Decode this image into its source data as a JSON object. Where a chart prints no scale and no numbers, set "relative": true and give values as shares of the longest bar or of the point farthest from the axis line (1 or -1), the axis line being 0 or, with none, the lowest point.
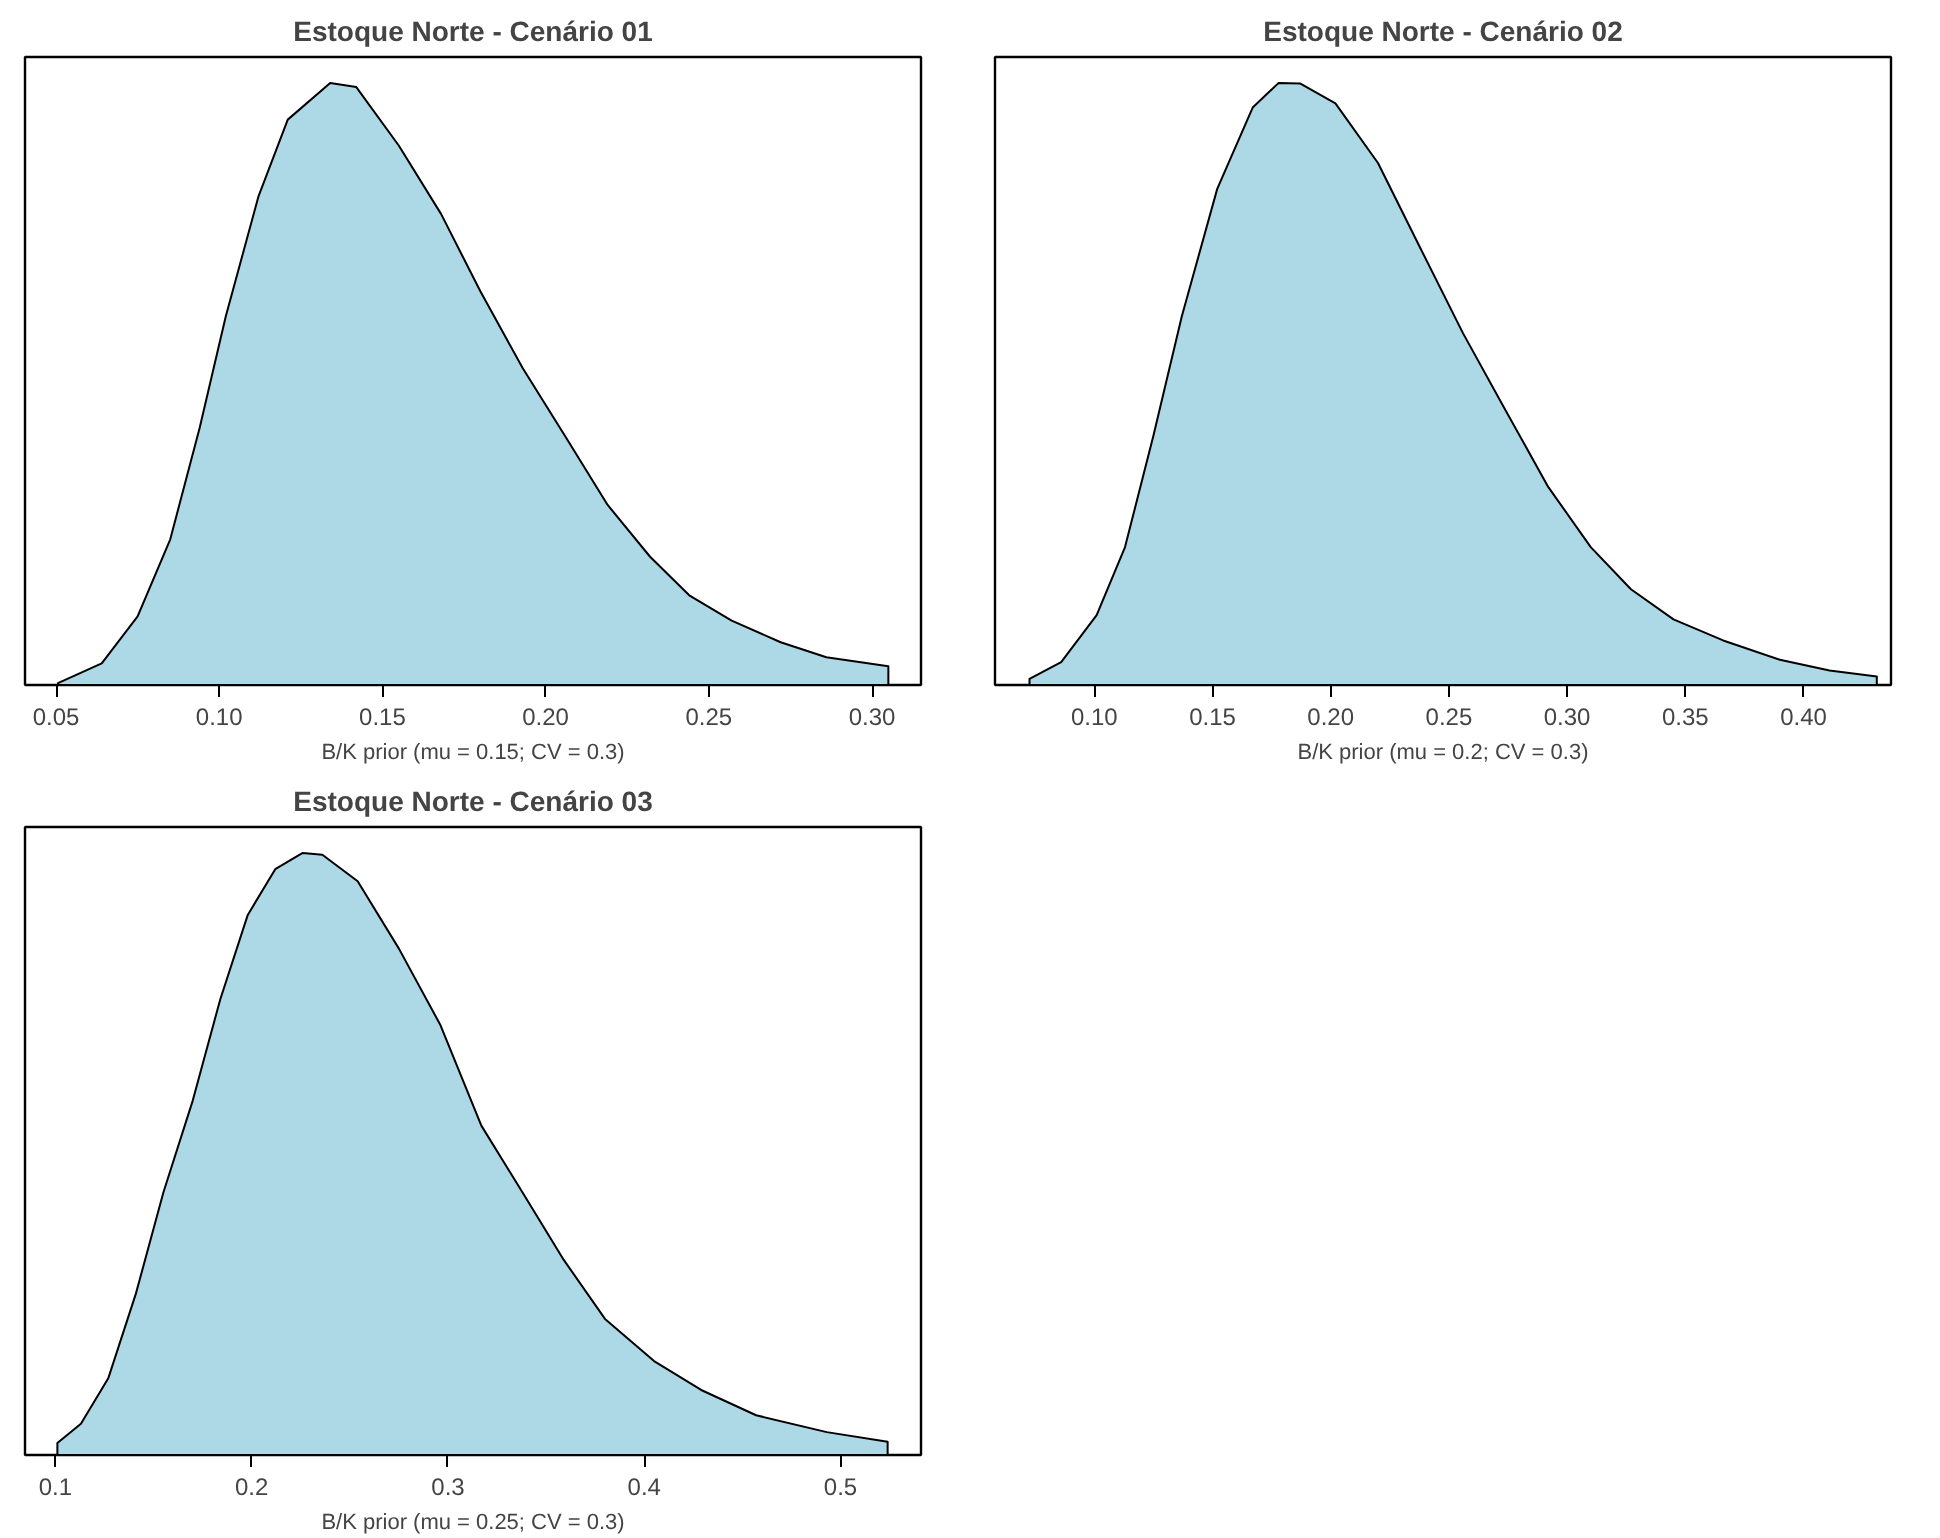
{
  "chart_data": [
    {
      "type": "area",
      "title": "Estoque Norte - Cenário 01",
      "xlabel": "B/K prior (mu = 0.15; CV = 0.3)",
      "relative": true,
      "tick_labels": "x",
      "xlim": [
        0.0405,
        0.315
      ],
      "xticks": [
        {
          "value": 0.05,
          "label": "0.05"
        },
        {
          "value": 0.1,
          "label": "0.10"
        },
        {
          "value": 0.15,
          "label": "0.15"
        },
        {
          "value": 0.2,
          "label": "0.20"
        },
        {
          "value": 0.25,
          "label": "0.25"
        },
        {
          "value": 0.3,
          "label": "0.30"
        }
      ],
      "x": [
        0.0506,
        0.0506,
        0.064,
        0.075,
        0.085,
        0.094,
        0.102,
        0.112,
        0.121,
        0.134,
        0.142,
        0.155,
        0.168,
        0.18,
        0.193,
        0.206,
        0.219,
        0.232,
        0.244,
        0.257,
        0.272,
        0.286,
        0.305,
        0.305
      ],
      "series": [
        {
          "color": "#add8e6",
          "values": [
            0,
            0.003,
            0.036,
            0.114,
            0.242,
            0.427,
            0.612,
            0.811,
            0.939,
            1.0,
            0.993,
            0.896,
            0.782,
            0.654,
            0.526,
            0.413,
            0.299,
            0.213,
            0.149,
            0.107,
            0.071,
            0.046,
            0.031,
            0
          ]
        }
      ]
    },
    {
      "type": "area",
      "title": "Estoque Norte - Cenário 02",
      "xlabel": "B/K prior (mu = 0.2; CV = 0.3)",
      "relative": true,
      "tick_labels": "x",
      "xlim": [
        0.058,
        0.437
      ],
      "xticks": [
        {
          "value": 0.1,
          "label": "0.10"
        },
        {
          "value": 0.15,
          "label": "0.15"
        },
        {
          "value": 0.2,
          "label": "0.20"
        },
        {
          "value": 0.25,
          "label": "0.25"
        },
        {
          "value": 0.3,
          "label": "0.30"
        },
        {
          "value": 0.35,
          "label": "0.35"
        },
        {
          "value": 0.4,
          "label": "0.40"
        }
      ],
      "x": [
        0.0726,
        0.0726,
        0.086,
        0.101,
        0.113,
        0.125,
        0.137,
        0.152,
        0.167,
        0.178,
        0.187,
        0.202,
        0.22,
        0.238,
        0.256,
        0.274,
        0.292,
        0.31,
        0.327,
        0.345,
        0.366,
        0.39,
        0.411,
        0.431,
        0.431
      ],
      "series": [
        {
          "color": "#add8e6",
          "values": [
            0,
            0.01,
            0.038,
            0.116,
            0.229,
            0.414,
            0.612,
            0.824,
            0.959,
            1.0,
            0.999,
            0.966,
            0.867,
            0.725,
            0.584,
            0.456,
            0.329,
            0.229,
            0.159,
            0.109,
            0.074,
            0.042,
            0.024,
            0.014,
            0
          ]
        }
      ]
    },
    {
      "type": "area",
      "title": "Estoque Norte - Cenário 03",
      "xlabel": "B/K prior (mu = 0.25; CV = 0.3)",
      "relative": true,
      "tick_labels": "x",
      "xlim": [
        0.0845,
        0.541
      ],
      "xticks": [
        0.1,
        0.2,
        0.3,
        0.4,
        0.5
      ],
      "x": [
        0.101,
        0.101,
        0.113,
        0.127,
        0.141,
        0.155,
        0.17,
        0.184,
        0.198,
        0.212,
        0.226,
        0.236,
        0.254,
        0.275,
        0.296,
        0.317,
        0.338,
        0.359,
        0.38,
        0.405,
        0.429,
        0.457,
        0.493,
        0.524,
        0.524
      ],
      "series": [
        {
          "color": "#add8e6",
          "values": [
            0,
            0.02,
            0.052,
            0.128,
            0.268,
            0.436,
            0.589,
            0.757,
            0.897,
            0.973,
            1.0,
            0.997,
            0.953,
            0.841,
            0.715,
            0.547,
            0.436,
            0.324,
            0.226,
            0.156,
            0.108,
            0.066,
            0.038,
            0.022,
            0
          ]
        }
      ]
    }
  ]
}
